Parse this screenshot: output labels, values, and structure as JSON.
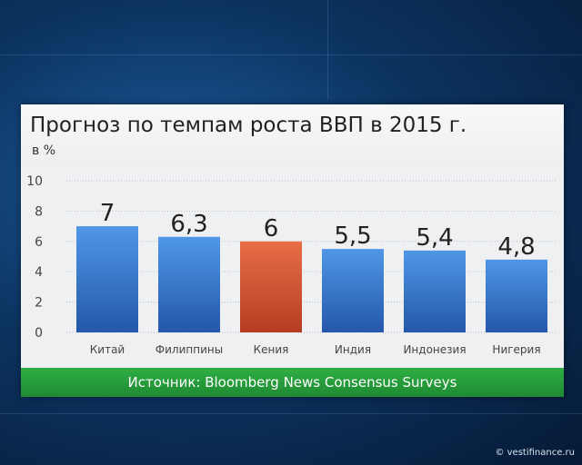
{
  "title": "Прогноз по темпам роста ВВП в 2015 г.",
  "unit": "в %",
  "source": "Источник: Bloomberg News Consensus Surveys",
  "watermark": "© vestifinance.ru",
  "colors": {
    "bar": "#3f84d8",
    "highlight": "#e35f3a"
  },
  "chart_data": {
    "type": "bar",
    "title": "Прогноз по темпам роста ВВП в 2015 г.",
    "ylabel": "в %",
    "xlabel": "",
    "ylim": [
      0,
      10
    ],
    "yticks": [
      0,
      2,
      4,
      6,
      8,
      10
    ],
    "grid": true,
    "categories": [
      "Китай",
      "Филиппины",
      "Кения",
      "Индия",
      "Индонезия",
      "Нигерия"
    ],
    "values": [
      7,
      6.3,
      6,
      5.5,
      5.4,
      4.8
    ],
    "value_labels": [
      "7",
      "6,3",
      "6",
      "5,5",
      "5,4",
      "4,8"
    ],
    "highlight_index": 2
  }
}
